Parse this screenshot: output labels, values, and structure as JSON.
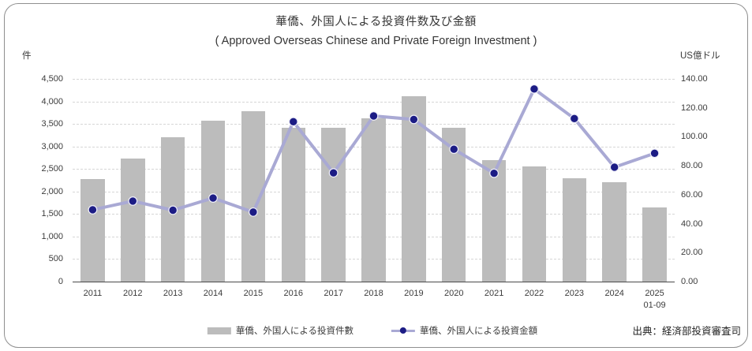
{
  "title": "華僑、外国人による投資件数及び金額",
  "subtitle": "( Approved Overseas Chinese and Private Foreign Investment )",
  "left_axis_unit": "件",
  "right_axis_unit": "US億ドル",
  "source": "出典：経済部投資審査司",
  "legend": {
    "bars_label": "華僑、外国人による投資件數",
    "line_label": "華僑、外国人による投資金額"
  },
  "colors": {
    "bar": "#bcbcbc",
    "line": "#a9a9d4",
    "marker": "#1c1c85",
    "marker_edge": "#eeeef8",
    "gridline": "#d6d6d6",
    "axis_line": "#4a4a4a"
  },
  "chart_data": {
    "type": "bar+line",
    "title": "華僑、外国人による投資件数及び金額 ( Approved Overseas Chinese and Private Foreign Investment )",
    "categories": [
      "2011",
      "2012",
      "2013",
      "2014",
      "2015",
      "2016",
      "2017",
      "2018",
      "2019",
      "2020",
      "2021",
      "2022",
      "2023",
      "2024",
      "2025\n01-09"
    ],
    "series": [
      {
        "name": "華僑、外国人による投資件數",
        "type": "bar",
        "axis": "left",
        "unit": "件",
        "values": [
          2283,
          2738,
          3206,
          3578,
          3790,
          3420,
          3415,
          3620,
          4110,
          3420,
          2700,
          2560,
          2290,
          2205,
          1650
        ]
      },
      {
        "name": "華僑、外国人による投資金額",
        "type": "line",
        "axis": "right",
        "unit": "US億ドル",
        "values": [
          49.6,
          55.6,
          49.3,
          57.7,
          48.0,
          110.4,
          75.1,
          114.4,
          112.0,
          91.4,
          74.8,
          133.0,
          112.6,
          79.0,
          88.6
        ]
      }
    ],
    "left_axis": {
      "min": 0,
      "max": 4500,
      "step": 500,
      "thousands_separator": true
    },
    "right_axis": {
      "min": 0,
      "max": 140,
      "step": 20,
      "decimals": 2
    },
    "grid": true,
    "legend_position": "bottom"
  }
}
